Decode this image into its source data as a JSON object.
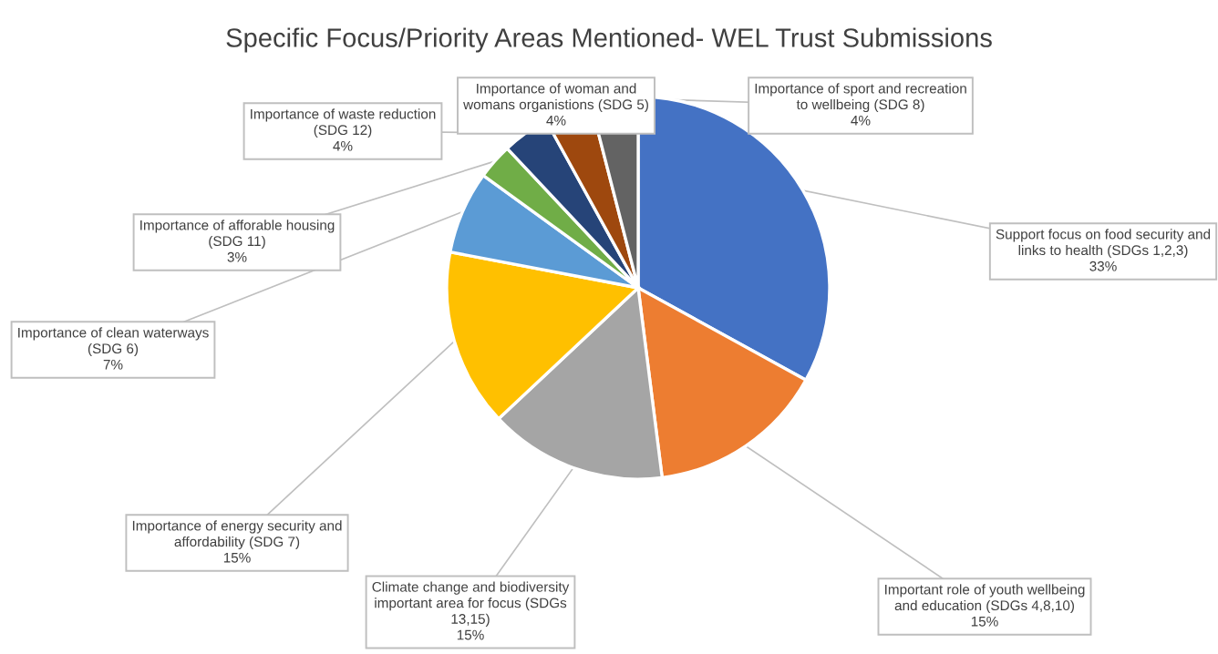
{
  "chart_data": {
    "type": "pie",
    "title": "Specific Focus/Priority Areas Mentioned- WEL Trust Submissions",
    "categories": [
      "Support focus on food security and\nlinks to health (SDGs 1,2,3)",
      "Important role of youth wellbeing\nand education (SDGs 4,8,10)",
      "Climate change and biodiversity\nimportant area for focus (SDGs\n13,15)",
      "Importance of energy security and\naffordability (SDG 7)",
      "Importance of clean waterways\n(SDG 6)",
      "Importance of afforable housing\n(SDG 11)",
      "Importance of waste reduction\n(SDG 12)",
      "Importance of woman and\nwomans organistions (SDG 5)",
      "Importance of sport and recreation\nto wellbeing (SDG 8)"
    ],
    "values": [
      33,
      15,
      15,
      15,
      7,
      3,
      4,
      4,
      4
    ],
    "value_labels": [
      "33%",
      "15%",
      "15%",
      "15%",
      "7%",
      "3%",
      "4%",
      "4%",
      "4%"
    ],
    "colors": [
      "#4472c4",
      "#ed7d31",
      "#a5a5a5",
      "#ffc000",
      "#5b9bd5",
      "#70ad47",
      "#264478",
      "#9e480e",
      "#636363"
    ],
    "legend": false
  }
}
